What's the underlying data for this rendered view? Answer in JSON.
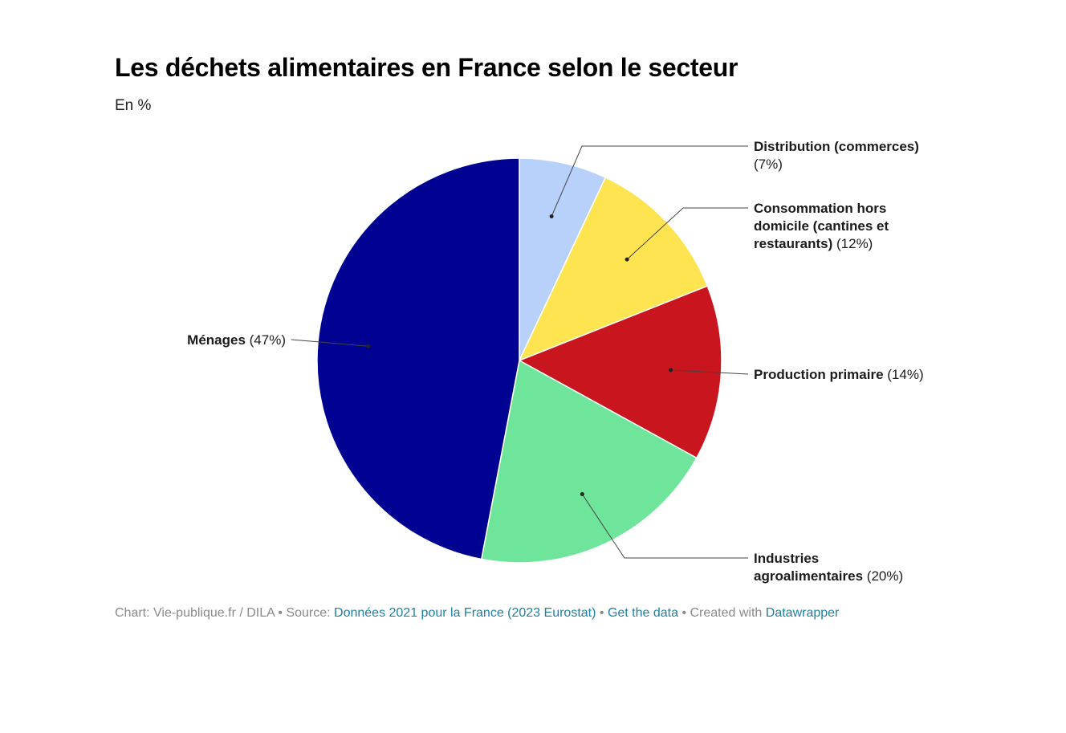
{
  "chart_data": {
    "type": "pie",
    "title": "Les déchets alimentaires en France selon le secteur",
    "subtitle": "En %",
    "slices": [
      {
        "name": "Distribution (commerces)",
        "value": 7,
        "value_label": "(7%)",
        "color": "#b7d1fa"
      },
      {
        "name": "Consommation hors domicile (cantines et restaurants)",
        "value": 12,
        "value_label": "(12%)",
        "color": "#fee451"
      },
      {
        "name": "Production primaire",
        "value": 14,
        "value_label": "(14%)",
        "color": "#c9161e"
      },
      {
        "name": "Industries agroalimentaires",
        "value": 20,
        "value_label": "(20%)",
        "color": "#6fe49b"
      },
      {
        "name": "Ménages",
        "value": 47,
        "value_label": "(47%)",
        "color": "#000391"
      }
    ],
    "start_angle": "12 o'clock",
    "direction": "clockwise"
  },
  "footer": {
    "chart_prefix": "Chart: Vie-publique.fr / DILA",
    "sep1": " • ",
    "source_prefix": "Source: ",
    "source_link": "Données 2021 pour la France (2023 Eurostat)",
    "sep2": " • ",
    "get_data": "Get the data",
    "sep3": " • ",
    "created_with": "Created with ",
    "tool": "Datawrapper"
  }
}
